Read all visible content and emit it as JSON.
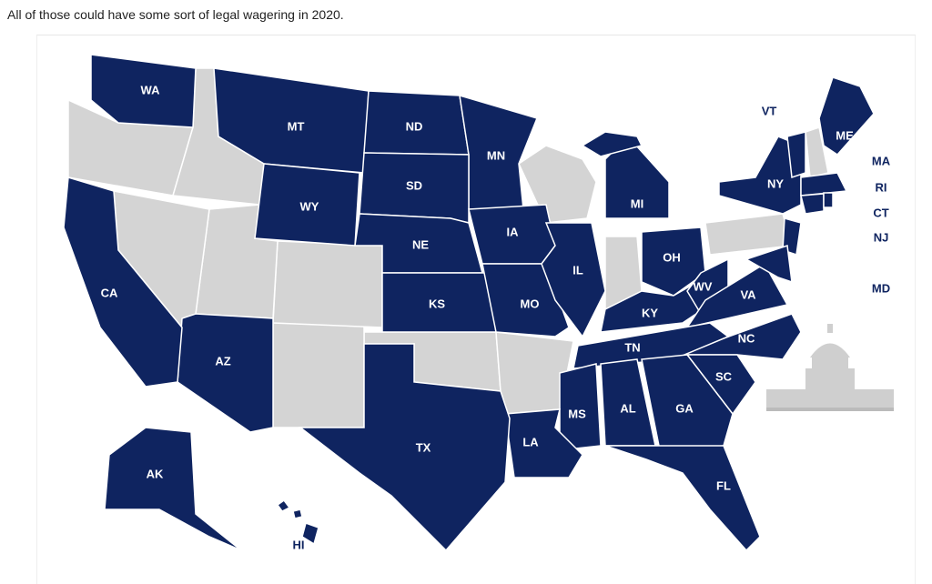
{
  "caption": "All of those could have some sort of legal wagering in 2020.",
  "map": {
    "state_labels": [
      "WA",
      "MT",
      "ND",
      "MN",
      "WY",
      "SD",
      "NE",
      "IA",
      "KS",
      "MO",
      "IL",
      "MI",
      "OH",
      "KY",
      "WV",
      "VA",
      "NC",
      "TN",
      "SC",
      "GA",
      "AL",
      "MS",
      "LA",
      "TX",
      "AZ",
      "CA",
      "AK",
      "NY",
      "ME",
      "FL"
    ],
    "outside_labels": [
      "VT",
      "MA",
      "RI",
      "CT",
      "NJ",
      "MD",
      "HI"
    ]
  }
}
